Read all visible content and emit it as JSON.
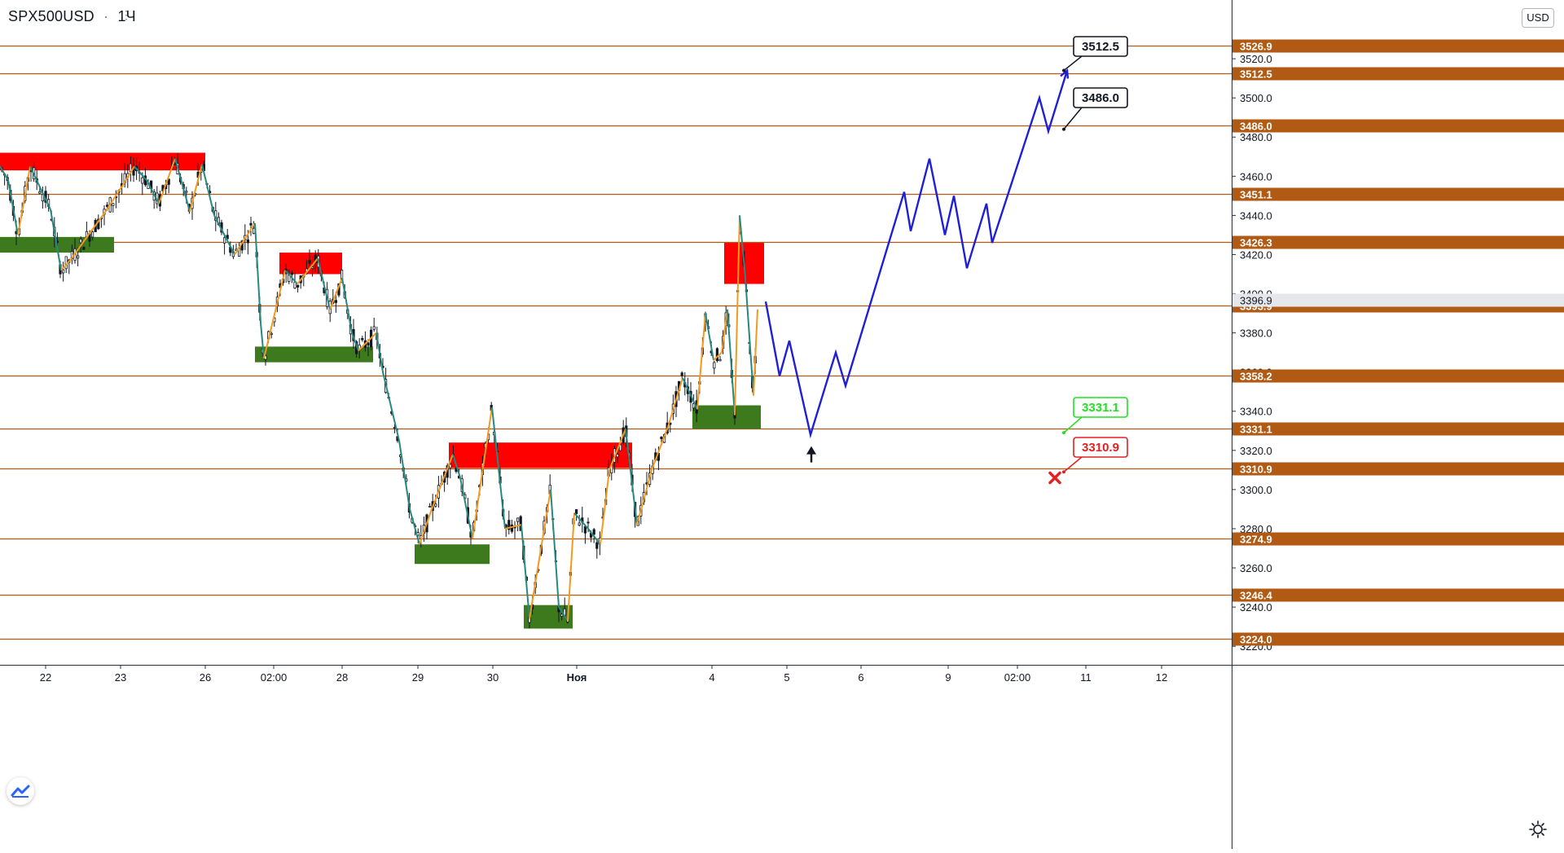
{
  "header": {
    "symbol": "SPX500USD",
    "separator": "·",
    "timeframe": "1Ч",
    "menu_icon": "more-icon"
  },
  "scale_button": {
    "label": "USD"
  },
  "icons": {
    "logo": "tradingview-logo-icon",
    "settings": "gear-icon",
    "arrow": "up-arrow-icon",
    "cross": "red-cross-icon"
  },
  "colors": {
    "level_line": "#b05a14",
    "level_label_bg": "#b05a14",
    "level_label_text": "#ffffff",
    "bull_candle": "#131722",
    "bear_candle": "#131722",
    "zigzag_up": "#f29a1f",
    "zigzag_down": "#26897f",
    "supply_zone": "#ff0000",
    "demand_zone": "#3d7a1e",
    "projection": "#1f1fd6",
    "current_price": "#9598a1",
    "target_callout_border": "#131722",
    "green_callout": "#22e022",
    "red_callout": "#e02222"
  },
  "chart_data": {
    "type": "candlestick",
    "title": "SPX500USD",
    "timeframe": "1H",
    "ylim": [
      3213,
      3550
    ],
    "y_ticks": [
      3220.0,
      3240.0,
      3260.0,
      3280.0,
      3300.0,
      3320.0,
      3340.0,
      3360.0,
      3380.0,
      3400.0,
      3420.0,
      3440.0,
      3460.0,
      3480.0,
      3500.0,
      3520.0
    ],
    "x_tick_labels": [
      "22",
      "23",
      "26",
      "02:00",
      "28",
      "29",
      "30",
      "Ноя",
      "4",
      "5",
      "6",
      "9",
      "02:00",
      "11",
      "12"
    ],
    "levels": [
      3526.9,
      3512.5,
      3486.0,
      3451.1,
      3426.3,
      3393.9,
      3358.2,
      3331.1,
      3310.9,
      3274.9,
      3246.4,
      3224.0
    ],
    "current_price": 3396.9,
    "callouts": [
      {
        "label": "3512.5",
        "value": 3512.5,
        "style": "target"
      },
      {
        "label": "3486.0",
        "value": 3486.0,
        "style": "target"
      },
      {
        "label": "3331.1",
        "value": 3331.1,
        "style": "green"
      },
      {
        "label": "3310.9",
        "value": 3310.9,
        "style": "red"
      }
    ],
    "supply_zones": [
      {
        "from": "Oct 22",
        "to": "Oct 26",
        "low": 3463,
        "high": 3472
      },
      {
        "from": "Oct 27",
        "to": "Oct 28",
        "low": 3410,
        "high": 3421
      },
      {
        "from": "Oct 29",
        "to": "Nov 2",
        "low": 3311,
        "high": 3324
      },
      {
        "from": "Nov 4",
        "to": "Nov 4",
        "low": 3405,
        "high": 3426
      }
    ],
    "demand_zones": [
      {
        "from": "Oct 21",
        "to": "Oct 23",
        "low": 3421,
        "high": 3429
      },
      {
        "from": "Oct 27",
        "to": "Oct 28",
        "low": 3365,
        "high": 3373
      },
      {
        "from": "Oct 29",
        "to": "Oct 30",
        "low": 3262,
        "high": 3272
      },
      {
        "from": "Oct 30",
        "to": "Nov 1",
        "low": 3229,
        "high": 3241
      },
      {
        "from": "Nov 3",
        "to": "Nov 4",
        "low": 3331,
        "high": 3343
      }
    ],
    "price_path": [
      [
        0,
        3465
      ],
      [
        10,
        3458
      ],
      [
        22,
        3430
      ],
      [
        37,
        3465
      ],
      [
        62,
        3443
      ],
      [
        75,
        3412
      ],
      [
        88,
        3418
      ],
      [
        105,
        3428
      ],
      [
        128,
        3441
      ],
      [
        150,
        3455
      ],
      [
        165,
        3465
      ],
      [
        180,
        3458
      ],
      [
        195,
        3446
      ],
      [
        215,
        3469
      ],
      [
        233,
        3442
      ],
      [
        248,
        3466
      ],
      [
        263,
        3440
      ],
      [
        288,
        3420
      ],
      [
        313,
        3436
      ],
      [
        320,
        3385
      ],
      [
        324,
        3367
      ],
      [
        350,
        3412
      ],
      [
        365,
        3405
      ],
      [
        390,
        3418
      ],
      [
        405,
        3392
      ],
      [
        420,
        3408
      ],
      [
        432,
        3380
      ],
      [
        440,
        3371
      ],
      [
        462,
        3380
      ],
      [
        470,
        3360
      ],
      [
        490,
        3325
      ],
      [
        503,
        3290
      ],
      [
        515,
        3272
      ],
      [
        530,
        3290
      ],
      [
        556,
        3318
      ],
      [
        565,
        3306
      ],
      [
        580,
        3275
      ],
      [
        604,
        3342
      ],
      [
        620,
        3280
      ],
      [
        640,
        3282
      ],
      [
        650,
        3234
      ],
      [
        676,
        3300
      ],
      [
        686,
        3240
      ],
      [
        697,
        3233
      ],
      [
        705,
        3288
      ],
      [
        722,
        3280
      ],
      [
        737,
        3272
      ],
      [
        748,
        3310
      ],
      [
        768,
        3331
      ],
      [
        782,
        3282
      ],
      [
        800,
        3310
      ],
      [
        820,
        3332
      ],
      [
        838,
        3357
      ],
      [
        856,
        3341
      ],
      [
        866,
        3390
      ],
      [
        876,
        3366
      ],
      [
        886,
        3370
      ],
      [
        893,
        3392
      ],
      [
        902,
        3338
      ],
      [
        908,
        3440
      ],
      [
        915,
        3408
      ],
      [
        925,
        3348
      ],
      [
        930,
        3392
      ]
    ],
    "projection_path": [
      [
        940,
        3396
      ],
      [
        957,
        3358
      ],
      [
        969,
        3376
      ],
      [
        995,
        3328
      ],
      [
        1026,
        3370
      ],
      [
        1038,
        3353
      ],
      [
        1110,
        3452
      ],
      [
        1118,
        3432
      ],
      [
        1141,
        3469
      ],
      [
        1160,
        3430
      ],
      [
        1171,
        3450
      ],
      [
        1187,
        3413
      ],
      [
        1211,
        3446
      ],
      [
        1218,
        3426
      ],
      [
        1276,
        3500
      ],
      [
        1287,
        3483
      ],
      [
        1310,
        3514
      ]
    ]
  }
}
